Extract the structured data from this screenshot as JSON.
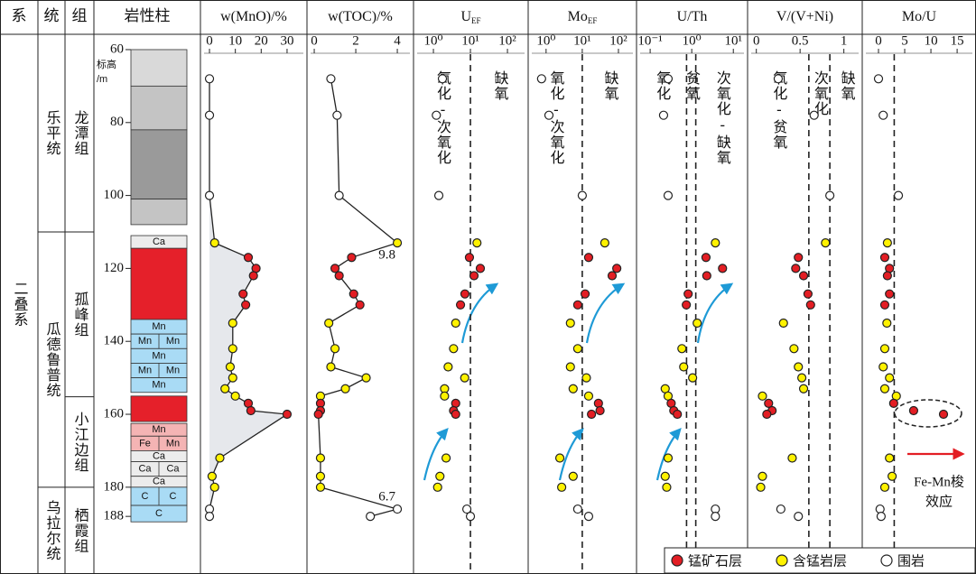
{
  "stratigraphy": {
    "headers": [
      "系",
      "统",
      "组",
      "岩性柱"
    ],
    "system": "二叠系",
    "series": [
      {
        "name": "乐平统",
        "base": 110
      },
      {
        "name": "瓜德鲁普统",
        "base": 180
      },
      {
        "name": "乌拉尔统",
        "base": null
      }
    ],
    "formations": [
      {
        "name": "龙潭组",
        "base": 110
      },
      {
        "name": "孤峰组",
        "base": 155.2
      },
      {
        "name": "小江边组",
        "base": 180
      },
      {
        "name": "栖霞组",
        "base": null
      }
    ]
  },
  "depth_axis": {
    "label": [
      "标高",
      "/m"
    ],
    "ylim": [
      55.8,
      203.8
    ],
    "yticks": [
      60,
      80,
      100,
      120,
      140,
      160,
      180,
      188
    ]
  },
  "lithology": {
    "layers": [
      {
        "top": 60,
        "bottom": 70,
        "fill": "#d9d9d9",
        "labels": []
      },
      {
        "top": 70,
        "bottom": 82,
        "fill": "#c4c4c4",
        "labels": []
      },
      {
        "top": 82,
        "bottom": 101,
        "fill": "#9a9a9a",
        "labels": []
      },
      {
        "top": 101,
        "bottom": 108,
        "fill": "#c4c4c4",
        "labels": []
      },
      {
        "top": 111,
        "bottom": 114.5,
        "fill": "#ececec",
        "labels": [
          "Ca"
        ]
      },
      {
        "top": 114.5,
        "bottom": 134,
        "fill": "#e5202a",
        "labels": []
      },
      {
        "top": 134,
        "bottom": 138,
        "fill": "#a9dbf5",
        "labels": [
          "Mn"
        ]
      },
      {
        "top": 138,
        "bottom": 142,
        "fill": "#a9dbf5",
        "labels": [
          "Mn",
          "Mn"
        ]
      },
      {
        "top": 142,
        "bottom": 146,
        "fill": "#a9dbf5",
        "labels": [
          "Mn"
        ]
      },
      {
        "top": 146,
        "bottom": 150,
        "fill": "#a9dbf5",
        "labels": [
          "Mn",
          "Mn"
        ]
      },
      {
        "top": 150,
        "bottom": 154,
        "fill": "#a9dbf5",
        "labels": [
          "Mn"
        ]
      },
      {
        "top": 155,
        "bottom": 162,
        "fill": "#e5202a",
        "labels": []
      },
      {
        "top": 162.5,
        "bottom": 166,
        "fill": "#f4b4b4",
        "labels": [
          "Mn"
        ]
      },
      {
        "top": 166,
        "bottom": 170,
        "fill": "#f4b4b4",
        "labels": [
          "Fe",
          "Mn"
        ]
      },
      {
        "top": 170,
        "bottom": 173,
        "fill": "#ececec",
        "labels": [
          "Ca"
        ]
      },
      {
        "top": 173,
        "bottom": 177,
        "fill": "#ececec",
        "labels": [
          "Ca",
          "Ca"
        ]
      },
      {
        "top": 177,
        "bottom": 180,
        "fill": "#ececec",
        "labels": [
          "Ca"
        ]
      },
      {
        "top": 180,
        "bottom": 185,
        "fill": "#a9dbf5",
        "labels": [
          "C",
          "C"
        ]
      },
      {
        "top": 185,
        "bottom": 189.5,
        "fill": "#a9dbf5",
        "labels": [
          "C"
        ]
      }
    ]
  },
  "samples": {
    "depths": [
      68,
      78,
      100,
      113,
      117,
      120,
      122,
      127,
      130,
      135,
      142,
      147,
      150,
      153,
      155,
      157,
      159,
      160,
      172,
      177,
      180,
      186,
      188
    ],
    "types": [
      2,
      2,
      2,
      1,
      0,
      0,
      0,
      0,
      0,
      1,
      1,
      1,
      1,
      1,
      1,
      0,
      0,
      0,
      1,
      1,
      1,
      2,
      2
    ]
  },
  "legend": {
    "position": "bottom-right",
    "entries": [
      {
        "name": "锰矿石层",
        "color": "#e31e24"
      },
      {
        "name": "含锰岩层",
        "color": "#fff200"
      },
      {
        "name": "围岩",
        "color": "#ffffff"
      }
    ]
  },
  "chart_data": [
    {
      "type": "line",
      "title": "w(MnO)/%",
      "area": true,
      "xlim": [
        -3.5,
        37.7
      ],
      "xticks": [
        0,
        10,
        20,
        30
      ],
      "values": [
        0,
        0,
        0,
        2,
        15,
        18,
        17,
        13,
        14,
        9,
        9,
        8,
        9,
        6,
        10,
        15,
        16,
        30,
        4,
        1,
        2,
        0,
        0
      ]
    },
    {
      "type": "line",
      "title": "w(TOC)/%",
      "xlim": [
        -0.35,
        4.78
      ],
      "xticks": [
        0,
        2,
        4
      ],
      "values": [
        0.8,
        1.1,
        1.2,
        9.8,
        1.8,
        1.0,
        1.2,
        1.9,
        2.2,
        0.7,
        1.0,
        0.8,
        2.5,
        1.5,
        0.3,
        0.3,
        0.3,
        0.2,
        0.3,
        0.3,
        0.3,
        6.7,
        2.7
      ]
    },
    {
      "type": "scatter",
      "title": "U",
      "title_sub": "EF",
      "log": true,
      "xlim": [
        0.29,
        363
      ],
      "xticks": [
        {
          "value": 1,
          "label": "10⁰"
        },
        {
          "value": 10,
          "label": "10¹"
        },
        {
          "value": 100,
          "label": "10²"
        }
      ],
      "thresholds": [
        10
      ],
      "zones": [
        "氧化-次氧化",
        "缺氧"
      ],
      "values": [
        1.75,
        1.2,
        1.4,
        15,
        9.4,
        18.5,
        12.5,
        7.1,
        5.4,
        4,
        3.5,
        2.5,
        7,
        2,
        2,
        4,
        3.5,
        4,
        2.2,
        1.5,
        1.3,
        8,
        10
      ]
    },
    {
      "type": "scatter",
      "title": "Mo",
      "title_sub": "EF",
      "log": true,
      "xlim": [
        0.32,
        316
      ],
      "xticks": [
        {
          "value": 1,
          "label": "10⁰"
        },
        {
          "value": 10,
          "label": "10¹"
        },
        {
          "value": 100,
          "label": "10²"
        }
      ],
      "thresholds": [
        10
      ],
      "zones": [
        "氧化-次氧化",
        "缺氧"
      ],
      "values": [
        0.75,
        1.2,
        10,
        42,
        15,
        90,
        67,
        12,
        7.5,
        4.7,
        7.5,
        4.7,
        13,
        5.6,
        15,
        28,
        31,
        18,
        2.4,
        5.6,
        2.7,
        7.5,
        15
      ]
    },
    {
      "type": "scatter",
      "title": "U/Th",
      "log": true,
      "xlim": [
        0.047,
        22
      ],
      "xticks": [
        {
          "value": 0.1,
          "label": "10⁻¹"
        },
        {
          "value": 1,
          "label": "10⁰"
        },
        {
          "value": 10,
          "label": "10¹"
        }
      ],
      "thresholds": [
        0.75,
        1.25
      ],
      "zones": [
        "氧化",
        "贫氧",
        "次氧化-缺氧"
      ],
      "values": [
        0.27,
        0.21,
        0.27,
        3.7,
        2.2,
        5.5,
        2.3,
        0.82,
        0.74,
        1.35,
        0.58,
        0.64,
        1.05,
        0.23,
        0.27,
        0.32,
        0.37,
        0.45,
        0.27,
        0.23,
        0.25,
        3.7,
        3.7
      ]
    },
    {
      "type": "scatter",
      "title": "V/(V+Ni)",
      "xlim": [
        -0.1,
        1.21
      ],
      "xticks": [
        0,
        0.5,
        1
      ],
      "thresholds": [
        0.6,
        0.84
      ],
      "zones": [
        "氧化-贫氧",
        "次氧化",
        "缺氧"
      ],
      "values": [
        0.25,
        0.66,
        0.84,
        0.79,
        0.48,
        0.45,
        0.54,
        0.59,
        0.62,
        0.31,
        0.43,
        0.48,
        0.52,
        0.54,
        0.07,
        0.14,
        0.18,
        0.12,
        0.41,
        0.07,
        0.05,
        0.28,
        0.48
      ]
    },
    {
      "type": "scatter",
      "title": "Mo/U",
      "xlim": [
        -3.1,
        18.6
      ],
      "xticks": [
        0,
        5,
        10,
        15
      ],
      "thresholds": [
        3
      ],
      "annotation": [
        "Fe-Mn梭",
        "效应"
      ],
      "values": [
        0,
        0.9,
        3.8,
        1.7,
        1.2,
        2.1,
        1.7,
        2.1,
        1.2,
        1.6,
        1.2,
        0.9,
        2.1,
        1.2,
        3.4,
        2.9,
        6.7,
        12.4,
        2.1,
        2.6,
        1.2,
        0.3,
        0.5
      ]
    }
  ]
}
